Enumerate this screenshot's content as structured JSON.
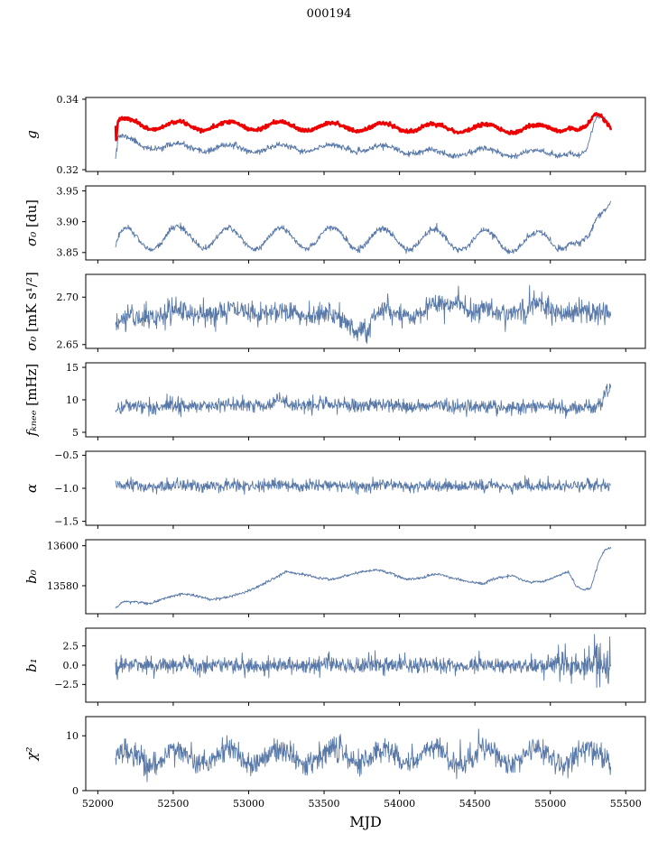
{
  "chart_data": {
    "type": "line",
    "title": "000194",
    "xlabel": "MJD",
    "xlim": [
      51920,
      55630
    ],
    "xticks": [
      52000,
      52500,
      53000,
      53500,
      54000,
      54500,
      55000,
      55500
    ],
    "xtick_labels": [
      "52000",
      "52500",
      "53000",
      "53500",
      "54000",
      "54500",
      "55000",
      "55500"
    ],
    "x_data_range": [
      52118,
      55400
    ],
    "legend": "none",
    "grid": false,
    "colors": {
      "line_blue": "#5878a8",
      "line_red": "#ee0000",
      "frame": "#000000"
    },
    "subplots": [
      {
        "id": "g",
        "ylabel_sym": "g",
        "ylabel_unit": "",
        "ylim": [
          0.3195,
          0.3405
        ],
        "yticks": [
          [
            0.32,
            "0.32"
          ],
          [
            0.34,
            "0.34"
          ]
        ],
        "series": [
          {
            "name": "g-thin",
            "color": "#5878a8",
            "width": 0.9,
            "noise": 0.0004,
            "seed": 11,
            "osc": {
              "amp": 0.001,
              "period": 340,
              "peak_mjd": 52190
            },
            "trend": [
              [
                52118,
                0.325
              ],
              [
                52135,
                0.329
              ],
              [
                52300,
                0.327
              ],
              [
                52600,
                0.3262
              ],
              [
                53000,
                0.326
              ],
              [
                53600,
                0.3262
              ],
              [
                54000,
                0.3258
              ],
              [
                54300,
                0.3242
              ],
              [
                54400,
                0.3252
              ],
              [
                54700,
                0.325
              ],
              [
                55000,
                0.3245
              ],
              [
                55130,
                0.3255
              ],
              [
                55180,
                0.3235
              ],
              [
                55240,
                0.3245
              ],
              [
                55300,
                0.334
              ],
              [
                55340,
                0.3355
              ],
              [
                55400,
                0.333
              ]
            ],
            "noise_scale": [
              [
                52116,
                5
              ],
              [
                52134,
                1
              ],
              [
                55400,
                1
              ]
            ]
          },
          {
            "name": "g-thick",
            "color": "#ee0000",
            "width": 2.6,
            "noise": 0.00025,
            "seed": 7,
            "osc": {
              "amp": 0.0012,
              "period": 340,
              "peak_mjd": 52190
            },
            "trend": [
              [
                52118,
                0.327
              ],
              [
                52135,
                0.3335
              ],
              [
                52400,
                0.3325
              ],
              [
                53000,
                0.3325
              ],
              [
                53500,
                0.3322
              ],
              [
                54000,
                0.332
              ],
              [
                54500,
                0.3318
              ],
              [
                54900,
                0.3315
              ],
              [
                55080,
                0.3322
              ],
              [
                55130,
                0.3328
              ],
              [
                55180,
                0.331
              ],
              [
                55240,
                0.3312
              ],
              [
                55290,
                0.3345
              ],
              [
                55330,
                0.3355
              ],
              [
                55360,
                0.3345
              ],
              [
                55400,
                0.333
              ]
            ],
            "noise_scale": [
              [
                52116,
                8
              ],
              [
                52132,
                1
              ],
              [
                55400,
                1
              ]
            ]
          }
        ]
      },
      {
        "id": "sigma0-du",
        "ylabel_sym": "σ₀",
        "ylabel_unit": " [du]",
        "ylim": [
          3.838,
          3.958
        ],
        "yticks": [
          [
            3.85,
            "3.85"
          ],
          [
            3.9,
            "3.90"
          ],
          [
            3.95,
            "3.95"
          ]
        ],
        "series": [
          {
            "name": "sigma0-du",
            "color": "#5878a8",
            "width": 0.9,
            "noise": 0.0025,
            "seed": 21,
            "osc": {
              "amp": 0.017,
              "period": 340,
              "peak_mjd": 52190
            },
            "trend": [
              [
                52118,
                3.858
              ],
              [
                52150,
                3.872
              ],
              [
                52300,
                3.87
              ],
              [
                52500,
                3.876
              ],
              [
                53000,
                3.872
              ],
              [
                53500,
                3.874
              ],
              [
                54000,
                3.872
              ],
              [
                54500,
                3.87
              ],
              [
                54900,
                3.866
              ],
              [
                55080,
                3.872
              ],
              [
                55130,
                3.876
              ],
              [
                55200,
                3.856
              ],
              [
                55260,
                3.862
              ],
              [
                55320,
                3.905
              ],
              [
                55400,
                3.948
              ]
            ]
          }
        ]
      },
      {
        "id": "sigma0-mk",
        "ylabel_sym": "σ₀",
        "ylabel_unit": " [mK s¹/²]",
        "ylim": [
          2.646,
          2.724
        ],
        "yticks": [
          [
            2.65,
            "2.65"
          ],
          [
            2.7,
            "2.70"
          ]
        ],
        "series": [
          {
            "name": "sigma0-mk",
            "color": "#5878a8",
            "width": 0.9,
            "noise": 0.006,
            "seed": 31,
            "osc": {
              "amp": 0.003,
              "period": 340,
              "peak_mjd": 52190
            },
            "trend": [
              [
                52118,
                2.668
              ],
              [
                52200,
                2.678
              ],
              [
                52400,
                2.682
              ],
              [
                53000,
                2.685
              ],
              [
                53500,
                2.683
              ],
              [
                53790,
                2.663
              ],
              [
                53810,
                2.675
              ],
              [
                53900,
                2.686
              ],
              [
                54000,
                2.682
              ],
              [
                54300,
                2.69
              ],
              [
                54380,
                2.7
              ],
              [
                54450,
                2.686
              ],
              [
                54700,
                2.684
              ],
              [
                55000,
                2.69
              ],
              [
                55100,
                2.684
              ],
              [
                55300,
                2.682
              ],
              [
                55400,
                2.684
              ]
            ]
          }
        ]
      },
      {
        "id": "fknee",
        "ylabel_sym": "fₖₙₑₑ",
        "ylabel_unit": " [mHz]",
        "ylim": [
          4.3,
          15.7
        ],
        "yticks": [
          [
            5,
            "5"
          ],
          [
            10,
            "10"
          ],
          [
            15,
            "15"
          ]
        ],
        "series": [
          {
            "name": "fknee",
            "color": "#5878a8",
            "width": 0.9,
            "noise": 0.55,
            "seed": 41,
            "osc": {
              "amp": 0.15,
              "period": 340,
              "peak_mjd": 52190
            },
            "trend": [
              [
                52118,
                8.6
              ],
              [
                52200,
                9.0
              ],
              [
                53000,
                9.2
              ],
              [
                53150,
                9.4
              ],
              [
                53200,
                10.2
              ],
              [
                53250,
                9.3
              ],
              [
                54000,
                9.1
              ],
              [
                54500,
                9.0
              ],
              [
                55000,
                8.9
              ],
              [
                55200,
                8.8
              ],
              [
                55300,
                8.8
              ],
              [
                55340,
                9.5
              ],
              [
                55370,
                11.3
              ],
              [
                55400,
                11.8
              ]
            ]
          }
        ]
      },
      {
        "id": "alpha",
        "ylabel_sym": "α",
        "ylabel_unit": "",
        "ylim": [
          -1.56,
          -0.44
        ],
        "yticks": [
          [
            -1.5,
            "−1.5"
          ],
          [
            -1.0,
            "−1.0"
          ],
          [
            -0.5,
            "−0.5"
          ]
        ],
        "series": [
          {
            "name": "alpha",
            "color": "#5878a8",
            "width": 0.9,
            "noise": 0.045,
            "seed": 51,
            "osc": {
              "amp": 0.01,
              "period": 340,
              "peak_mjd": 52190
            },
            "trend": [
              [
                52118,
                -0.97
              ],
              [
                53500,
                -0.965
              ],
              [
                55400,
                -0.96
              ]
            ]
          }
        ]
      },
      {
        "id": "b0",
        "ylabel_sym": "b₀",
        "ylabel_unit": "",
        "ylim": [
          13566,
          13603
        ],
        "yticks": [
          [
            13580,
            "13580"
          ],
          [
            13600,
            "13600"
          ]
        ],
        "series": [
          {
            "name": "b0",
            "color": "#5878a8",
            "width": 0.9,
            "noise": 0.35,
            "seed": 61,
            "osc": {
              "amp": 0.0,
              "period": 340,
              "peak_mjd": 52190
            },
            "trend": [
              [
                52118,
                13569
              ],
              [
                52170,
                13572
              ],
              [
                52250,
                13572
              ],
              [
                52350,
                13571
              ],
              [
                52450,
                13574
              ],
              [
                52550,
                13576
              ],
              [
                52650,
                13575
              ],
              [
                52750,
                13573
              ],
              [
                52850,
                13574
              ],
              [
                52950,
                13576
              ],
              [
                53050,
                13579
              ],
              [
                53150,
                13583
              ],
              [
                53250,
                13587
              ],
              [
                53350,
                13586
              ],
              [
                53450,
                13584
              ],
              [
                53550,
                13583
              ],
              [
                53650,
                13585
              ],
              [
                53750,
                13587
              ],
              [
                53850,
                13588
              ],
              [
                53950,
                13586
              ],
              [
                54050,
                13583
              ],
              [
                54150,
                13584
              ],
              [
                54250,
                13586
              ],
              [
                54350,
                13584
              ],
              [
                54450,
                13582
              ],
              [
                54550,
                13581
              ],
              [
                54650,
                13584
              ],
              [
                54750,
                13585
              ],
              [
                54850,
                13582
              ],
              [
                54950,
                13582
              ],
              [
                55050,
                13585
              ],
              [
                55120,
                13587
              ],
              [
                55170,
                13580
              ],
              [
                55220,
                13578
              ],
              [
                55270,
                13579
              ],
              [
                55320,
                13592
              ],
              [
                55360,
                13598
              ],
              [
                55400,
                13599
              ]
            ]
          }
        ]
      },
      {
        "id": "b1",
        "ylabel_sym": "b₁",
        "ylabel_unit": "",
        "ylim": [
          -4.8,
          4.8
        ],
        "yticks": [
          [
            -2.5,
            "−2.5"
          ],
          [
            0.0,
            "0.0"
          ],
          [
            2.5,
            "2.5"
          ]
        ],
        "series": [
          {
            "name": "b1",
            "color": "#5878a8",
            "width": 0.9,
            "noise": 0.55,
            "seed": 71,
            "osc": {
              "amp": 0.05,
              "period": 340,
              "peak_mjd": 52190
            },
            "trend": [
              [
                52118,
                -0.5
              ],
              [
                52135,
                0.0
              ],
              [
                55400,
                0.0
              ]
            ],
            "noise_scale": [
              [
                52116,
                4
              ],
              [
                52140,
                1
              ],
              [
                54900,
                1
              ],
              [
                55000,
                1.3
              ],
              [
                55120,
                2.2
              ],
              [
                55180,
                1.4
              ],
              [
                55250,
                2.0
              ],
              [
                55330,
                3.0
              ],
              [
                55400,
                2.8
              ]
            ]
          }
        ]
      },
      {
        "id": "chi2",
        "ylabel_sym": "χ²",
        "ylabel_unit": "",
        "ylim": [
          0,
          13.5
        ],
        "yticks": [
          [
            0,
            "0"
          ],
          [
            10,
            "10"
          ]
        ],
        "series": [
          {
            "name": "chi2",
            "color": "#5878a8",
            "width": 0.9,
            "noise": 1.1,
            "seed": 81,
            "osc": {
              "amp": 1.4,
              "period": 340,
              "peak_mjd": 52190
            },
            "trend": [
              [
                52118,
                5.8
              ],
              [
                52500,
                6.2
              ],
              [
                53000,
                6.3
              ],
              [
                54000,
                6.4
              ],
              [
                55000,
                6.2
              ],
              [
                55400,
                6.5
              ]
            ]
          }
        ]
      }
    ]
  }
}
